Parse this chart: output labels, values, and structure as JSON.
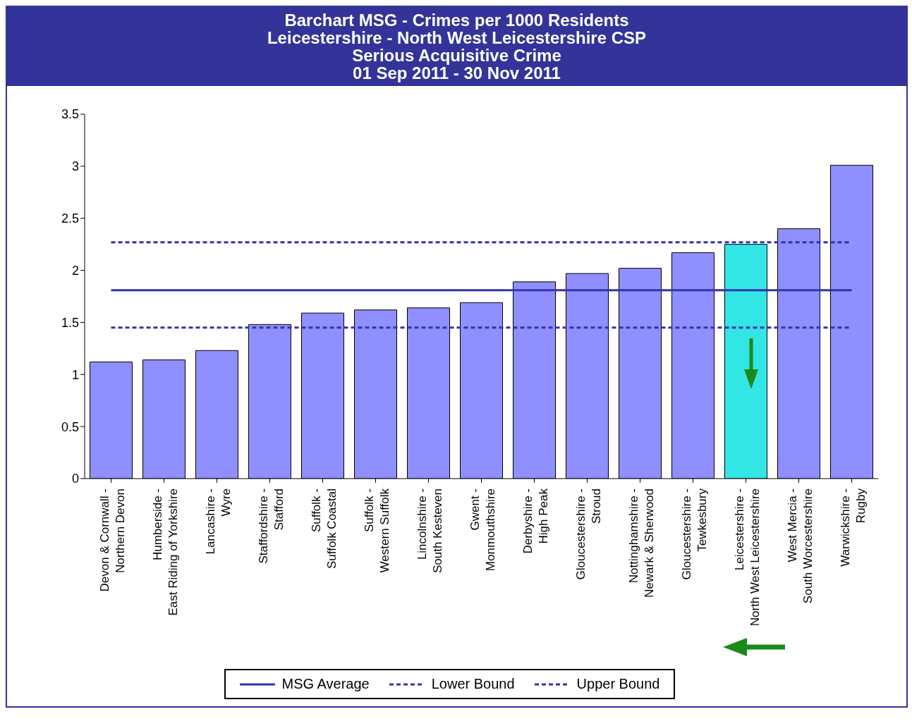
{
  "chart_data": {
    "type": "bar",
    "title": "Barchart MSG - Crimes per 1000 Residents",
    "subtitle": "Leicestershire - North West Leicestershire CSP\nSerious Acquisitive Crime\n01 Sep 2011 - 30 Nov 2011",
    "categories": [
      "Devon & Cornwall - Northern Devon",
      "Humberside - East Riding of Yorkshire",
      "Lancashire - Wyre",
      "Staffordshire - Stafford",
      "Suffolk - Suffolk Coastal",
      "Suffolk - Western Suffolk",
      "Lincolnshire - South Kesteven",
      "Gwent - Monmouthshire",
      "Derbyshire - High Peak",
      "Gloucestershire - Stroud",
      "Nottinghamshire - Newark & Sherwood",
      "Gloucestershire - Tewkesbury",
      "Leicestershire - North West Leicestershire",
      "West Mercia - South Worcestershire",
      "Warwickshire - Rugby"
    ],
    "series": [
      {
        "color": "#8f8fff",
        "colors": [
          "#8f8fff",
          "#8f8fff",
          "#8f8fff",
          "#8f8fff",
          "#8f8fff",
          "#8f8fff",
          "#8f8fff",
          "#8f8fff",
          "#8f8fff",
          "#8f8fff",
          "#8f8fff",
          "#8f8fff",
          "#33e6e6",
          "#8f8fff",
          "#8f8fff"
        ],
        "values": [
          1.12,
          1.14,
          1.23,
          1.48,
          1.59,
          1.62,
          1.64,
          1.69,
          1.89,
          1.97,
          2.02,
          2.17,
          2.25,
          2.4,
          3.01
        ]
      },
      {
        "type": "line",
        "name": "MSG Average",
        "color": "#3333aa",
        "line_style": "solid",
        "values": [
          1.81,
          1.81,
          1.81,
          1.81,
          1.81,
          1.81,
          1.81,
          1.81,
          1.81,
          1.81,
          1.81,
          1.81,
          1.81,
          1.81,
          1.81
        ]
      },
      {
        "type": "line",
        "name": "Lower Bound",
        "color": "#3333aa",
        "line_style": "dashed",
        "values": [
          1.45,
          1.45,
          1.45,
          1.45,
          1.45,
          1.45,
          1.45,
          1.45,
          1.45,
          1.45,
          1.45,
          1.45,
          1.45,
          1.45,
          1.45
        ]
      },
      {
        "type": "line",
        "name": "Upper Bound",
        "color": "#3333aa",
        "line_style": "dashed",
        "values": [
          2.27,
          2.27,
          2.27,
          2.27,
          2.27,
          2.27,
          2.27,
          2.27,
          2.27,
          2.27,
          2.27,
          2.27,
          2.27,
          2.27,
          2.27
        ]
      }
    ],
    "ylim": [
      0,
      3.5
    ],
    "yticks": [
      0,
      0.5,
      1,
      1.5,
      2,
      2.5,
      3,
      3.5
    ],
    "grid": false,
    "legend": "bottom",
    "marker": "none"
  }
}
